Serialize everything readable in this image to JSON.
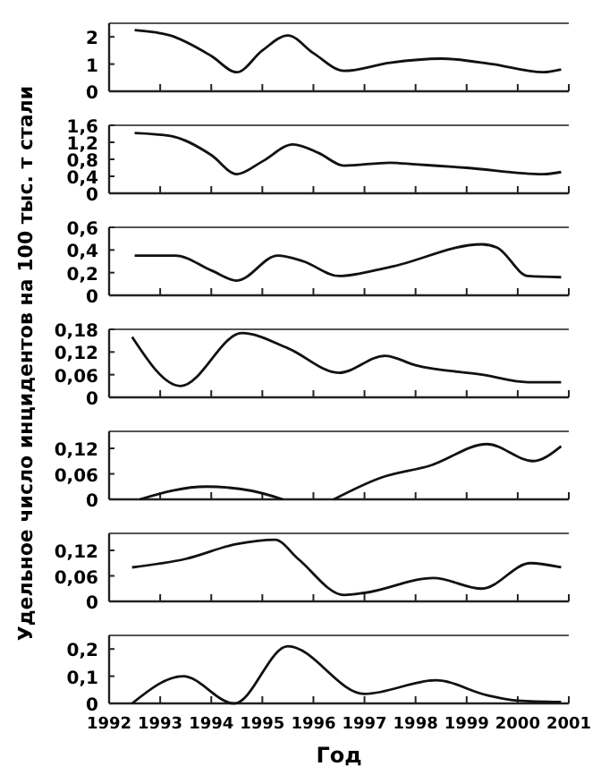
{
  "chart_data": [
    {
      "type": "line",
      "ylabel": "Удельное число инцидентов на 100 тыс. т стали",
      "tick_labels": "y",
      "grid": false,
      "xlim": [
        1992,
        2001
      ],
      "xticks": [
        {
          "value": 1992,
          "label": null
        },
        {
          "value": 1993,
          "label": null
        },
        {
          "value": 1994,
          "label": null
        },
        {
          "value": 1995,
          "label": null
        },
        {
          "value": 1996,
          "label": null
        },
        {
          "value": 1997,
          "label": null
        },
        {
          "value": 1998,
          "label": null
        },
        {
          "value": 1999,
          "label": null
        },
        {
          "value": 2000,
          "label": null
        },
        {
          "value": 2001,
          "label": null
        }
      ],
      "ylim": [
        0,
        2.5
      ],
      "yticks": [
        0,
        1,
        2
      ],
      "series": [
        {
          "color": "#111111",
          "x": [
            1992.5,
            1993.2,
            1994,
            1994.5,
            1995,
            1995.5,
            1996,
            1996.6,
            1997.5,
            1998.5,
            1999.5,
            2000.5,
            2000.85
          ],
          "values": [
            2.25,
            2.05,
            1.3,
            0.7,
            1.5,
            2.05,
            1.4,
            0.75,
            1.05,
            1.2,
            1.0,
            0.7,
            0.8
          ]
        }
      ]
    },
    {
      "type": "line",
      "tick_labels": "y",
      "grid": false,
      "xlim": [
        1992,
        2001
      ],
      "xticks": [
        {
          "value": 1992,
          "label": null
        },
        {
          "value": 1993,
          "label": null
        },
        {
          "value": 1994,
          "label": null
        },
        {
          "value": 1995,
          "label": null
        },
        {
          "value": 1996,
          "label": null
        },
        {
          "value": 1997,
          "label": null
        },
        {
          "value": 1998,
          "label": null
        },
        {
          "value": 1999,
          "label": null
        },
        {
          "value": 2000,
          "label": null
        },
        {
          "value": 2001,
          "label": null
        }
      ],
      "ylim": [
        0,
        1.6
      ],
      "yticks": [
        0,
        {
          "value": 0.4,
          "label": "0,4"
        },
        {
          "value": 0.8,
          "label": "0,8"
        },
        {
          "value": 1.2,
          "label": "1,2"
        },
        {
          "value": 1.6,
          "label": "1,6"
        }
      ],
      "series": [
        {
          "color": "#111111",
          "x": [
            1992.5,
            1993.2,
            1994,
            1994.5,
            1995,
            1995.6,
            1996.1,
            1996.6,
            1997.5,
            1998,
            1999,
            2000.5,
            2000.85
          ],
          "values": [
            1.42,
            1.35,
            0.9,
            0.45,
            0.75,
            1.15,
            0.95,
            0.65,
            0.72,
            0.68,
            0.6,
            0.45,
            0.5
          ]
        }
      ]
    },
    {
      "type": "line",
      "tick_labels": "y",
      "grid": false,
      "xlim": [
        1992,
        2001
      ],
      "xticks": [
        {
          "value": 1992,
          "label": null
        },
        {
          "value": 1993,
          "label": null
        },
        {
          "value": 1994,
          "label": null
        },
        {
          "value": 1995,
          "label": null
        },
        {
          "value": 1996,
          "label": null
        },
        {
          "value": 1997,
          "label": null
        },
        {
          "value": 1998,
          "label": null
        },
        {
          "value": 1999,
          "label": null
        },
        {
          "value": 2000,
          "label": null
        },
        {
          "value": 2001,
          "label": null
        }
      ],
      "ylim": [
        0,
        0.6
      ],
      "yticks": [
        0,
        {
          "value": 0.2,
          "label": "0,2"
        },
        {
          "value": 0.4,
          "label": "0,4"
        },
        {
          "value": 0.6,
          "label": "0,6"
        }
      ],
      "series": [
        {
          "color": "#111111",
          "x": [
            1992.5,
            1993.3,
            1994,
            1994.5,
            1995.3,
            1995.8,
            1996.5,
            1997.5,
            1999.3,
            1999.6,
            2000.2,
            2000.85
          ],
          "values": [
            0.35,
            0.35,
            0.22,
            0.13,
            0.35,
            0.3,
            0.17,
            0.25,
            0.45,
            0.42,
            0.17,
            0.16
          ]
        }
      ]
    },
    {
      "type": "line",
      "tick_labels": "y",
      "grid": false,
      "xlim": [
        1992,
        2001
      ],
      "xticks": [
        {
          "value": 1992,
          "label": null
        },
        {
          "value": 1993,
          "label": null
        },
        {
          "value": 1994,
          "label": null
        },
        {
          "value": 1995,
          "label": null
        },
        {
          "value": 1996,
          "label": null
        },
        {
          "value": 1997,
          "label": null
        },
        {
          "value": 1998,
          "label": null
        },
        {
          "value": 1999,
          "label": null
        },
        {
          "value": 2000,
          "label": null
        },
        {
          "value": 2001,
          "label": null
        }
      ],
      "ylim": [
        0,
        0.18
      ],
      "yticks": [
        0,
        {
          "value": 0.06,
          "label": "0,06"
        },
        {
          "value": 0.12,
          "label": "0,12"
        },
        {
          "value": 0.18,
          "label": "0,18"
        }
      ],
      "series": [
        {
          "color": "#111111",
          "x": [
            1992.45,
            1993.4,
            1994.6,
            1995.5,
            1996.5,
            1997.4,
            1998,
            1999.3,
            2000.2,
            2000.85
          ],
          "values": [
            0.16,
            0.03,
            0.17,
            0.13,
            0.065,
            0.11,
            0.085,
            0.06,
            0.04,
            0.04
          ]
        }
      ]
    },
    {
      "type": "line",
      "tick_labels": "y",
      "grid": false,
      "xlim": [
        1992,
        2001
      ],
      "xticks": [
        {
          "value": 1992,
          "label": null
        },
        {
          "value": 1993,
          "label": null
        },
        {
          "value": 1994,
          "label": null
        },
        {
          "value": 1995,
          "label": null
        },
        {
          "value": 1996,
          "label": null
        },
        {
          "value": 1997,
          "label": null
        },
        {
          "value": 1998,
          "label": null
        },
        {
          "value": 1999,
          "label": null
        },
        {
          "value": 2000,
          "label": null
        },
        {
          "value": 2001,
          "label": null
        }
      ],
      "ylim": [
        0,
        0.16
      ],
      "yticks": [
        0,
        {
          "value": 0.06,
          "label": "0,06"
        },
        {
          "value": 0.12,
          "label": "0,12"
        }
      ],
      "series": [
        {
          "color": "#111111",
          "x": [
            1992.6,
            1993.9,
            1994.8,
            1995.4,
            1995.9,
            1996.4,
            1997.3,
            1998.3,
            1999.4,
            2000.3,
            2000.85
          ],
          "values": [
            0,
            0.03,
            0.02,
            0,
            null,
            0,
            0.05,
            0.08,
            0.13,
            0.09,
            0.125
          ]
        }
      ]
    },
    {
      "type": "line",
      "tick_labels": "y",
      "grid": false,
      "xlim": [
        1992,
        2001
      ],
      "xticks": [
        {
          "value": 1992,
          "label": null
        },
        {
          "value": 1993,
          "label": null
        },
        {
          "value": 1994,
          "label": null
        },
        {
          "value": 1995,
          "label": null
        },
        {
          "value": 1996,
          "label": null
        },
        {
          "value": 1997,
          "label": null
        },
        {
          "value": 1998,
          "label": null
        },
        {
          "value": 1999,
          "label": null
        },
        {
          "value": 2000,
          "label": null
        },
        {
          "value": 2001,
          "label": null
        }
      ],
      "ylim": [
        0,
        0.16
      ],
      "yticks": [
        0,
        {
          "value": 0.06,
          "label": "0,06"
        },
        {
          "value": 0.12,
          "label": "0,12"
        }
      ],
      "series": [
        {
          "color": "#111111",
          "x": [
            1992.45,
            1993.5,
            1994.5,
            1995.25,
            1995.7,
            1996.6,
            1997,
            1998.35,
            1999.3,
            2000.25,
            2000.85
          ],
          "values": [
            0.08,
            0.1,
            0.135,
            0.145,
            0.1,
            0.015,
            0.02,
            0.055,
            0.03,
            0.09,
            0.08
          ]
        }
      ]
    },
    {
      "type": "line",
      "xlabel": "Год",
      "grid": false,
      "xlim": [
        1992,
        2001
      ],
      "xticks": [
        1992,
        1993,
        1994,
        1995,
        1996,
        1997,
        1998,
        1999,
        2000,
        2001
      ],
      "ylim": [
        0,
        0.25
      ],
      "yticks": [
        0,
        {
          "value": 0.1,
          "label": "0,1"
        },
        {
          "value": 0.2,
          "label": "0,2"
        }
      ],
      "series": [
        {
          "color": "#111111",
          "x": [
            1992.45,
            1993.45,
            1994.45,
            1995.5,
            1997,
            1998.4,
            1999.4,
            2000,
            2000.85
          ],
          "values": [
            0,
            0.1,
            0,
            0.21,
            0.035,
            0.085,
            0.03,
            0.01,
            0.005
          ]
        }
      ]
    }
  ]
}
